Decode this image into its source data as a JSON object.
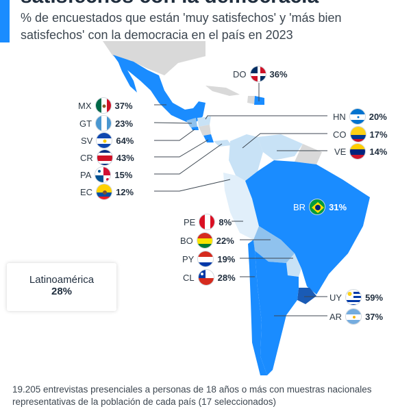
{
  "header": {
    "title": "satisfechos con la democracia",
    "subtitle": "% de encuestados que están 'muy satisfechos' y 'más bien satisfechos' con la democracia en el país en 2023"
  },
  "colors": {
    "accent": "#1a8cff",
    "high": "#1a8cff",
    "mid": "#8fc2ee",
    "low": "#c8e2f6",
    "lowest": "#e1effa",
    "nodata": "#d9d9d9"
  },
  "countries": [
    {
      "code": "DO",
      "value": "36%",
      "flag": "flag-dominican-republic-icon"
    },
    {
      "code": "MX",
      "value": "37%",
      "flag": "flag-mexico-icon"
    },
    {
      "code": "GT",
      "value": "23%",
      "flag": "flag-guatemala-icon"
    },
    {
      "code": "SV",
      "value": "64%",
      "flag": "flag-el-salvador-icon"
    },
    {
      "code": "CR",
      "value": "43%",
      "flag": "flag-costa-rica-icon"
    },
    {
      "code": "PA",
      "value": "15%",
      "flag": "flag-panama-icon"
    },
    {
      "code": "EC",
      "value": "12%",
      "flag": "flag-ecuador-icon"
    },
    {
      "code": "HN",
      "value": "20%",
      "flag": "flag-honduras-icon"
    },
    {
      "code": "CO",
      "value": "17%",
      "flag": "flag-colombia-icon"
    },
    {
      "code": "VE",
      "value": "14%",
      "flag": "flag-venezuela-icon"
    },
    {
      "code": "BR",
      "value": "31%",
      "flag": "flag-brazil-icon"
    },
    {
      "code": "PE",
      "value": "8%",
      "flag": "flag-peru-icon"
    },
    {
      "code": "BO",
      "value": "22%",
      "flag": "flag-bolivia-icon"
    },
    {
      "code": "PY",
      "value": "19%",
      "flag": "flag-paraguay-icon"
    },
    {
      "code": "CL",
      "value": "28%",
      "flag": "flag-chile-icon"
    },
    {
      "code": "UY",
      "value": "59%",
      "flag": "flag-uruguay-icon"
    },
    {
      "code": "AR",
      "value": "37%",
      "flag": "flag-argentina-icon"
    }
  ],
  "average": {
    "label": "Latinoamérica",
    "value": "28%"
  },
  "note": "19.205 entrevistas presenciales a personas de 18 años o más con muestras nacionales representativas de la población de cada país (17 seleccionados)"
}
